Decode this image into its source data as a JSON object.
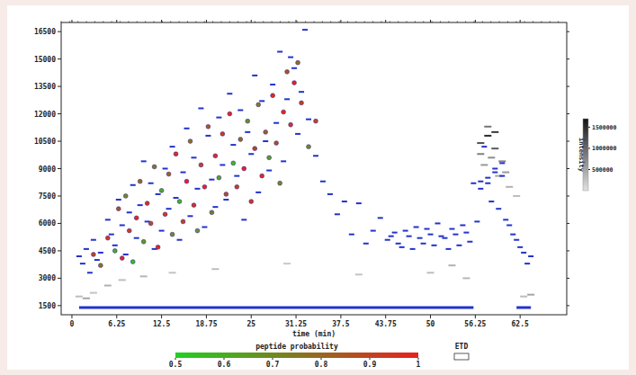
{
  "chart_data": {
    "type": "scatter",
    "x_label": "time (min)",
    "xlim": [
      -1.5,
      69
    ],
    "xticks": [
      0,
      6.25,
      12.5,
      18.75,
      25,
      31.25,
      37.5,
      43.75,
      50,
      56.25,
      62.5
    ],
    "ylim": [
      1000,
      17000
    ],
    "yticks": [
      1500,
      3000,
      4500,
      6000,
      7500,
      9000,
      10500,
      12000,
      13500,
      15000,
      16500
    ],
    "grid": false,
    "series": [
      {
        "color": "#2233cc",
        "marker": "dash",
        "x": [
          1,
          1.5,
          2,
          2.5,
          3,
          3.5,
          4,
          5,
          5.5,
          6,
          6.5,
          7,
          7.5,
          8,
          8.5,
          9,
          9.5,
          10,
          10.5,
          11,
          11.5,
          12,
          12.5,
          13,
          13.5,
          14,
          14.5,
          15,
          15.5,
          16,
          16.5,
          17,
          17.5,
          18,
          18.5,
          19,
          19.5,
          20,
          20.5,
          21,
          21.5,
          22,
          22.5,
          23,
          23.5,
          24,
          24.5,
          25,
          25.5,
          26,
          26.5,
          27,
          27.5,
          28,
          28.5,
          29,
          29.5,
          30,
          30.5,
          31,
          31.5,
          32,
          32.5,
          33,
          34,
          35,
          36,
          37,
          38,
          39,
          40,
          41,
          42,
          43,
          44,
          45,
          46,
          47,
          48,
          49,
          50,
          51,
          52,
          53,
          54,
          55,
          56,
          56.5,
          57,
          57.5,
          58,
          58.5,
          59,
          59.5,
          60,
          60.5,
          61,
          61.5,
          62,
          62.5,
          63,
          63.5,
          64,
          44.5,
          45.5,
          46.5,
          47.5,
          48.5,
          49.5,
          50.5,
          51.5,
          52.5,
          53.5,
          54.5,
          55.5,
          58,
          59,
          60,
          57
        ],
        "values": [
          4200,
          3800,
          4600,
          3300,
          5100,
          4000,
          4400,
          6200,
          5400,
          4800,
          7300,
          5900,
          4300,
          6600,
          8100,
          5200,
          7000,
          9400,
          6100,
          8200,
          4600,
          7600,
          5600,
          9000,
          6800,
          10200,
          7400,
          5100,
          8800,
          11200,
          6400,
          9600,
          7900,
          12300,
          5800,
          10800,
          8400,
          6900,
          11800,
          9200,
          7300,
          13100,
          10300,
          8600,
          12200,
          6200,
          11000,
          9800,
          14100,
          7700,
          12700,
          10500,
          8900,
          13600,
          11500,
          15400,
          9400,
          12800,
          15100,
          14500,
          10900,
          13200,
          16600,
          11700,
          9700,
          8300,
          7600,
          6500,
          7200,
          5400,
          7100,
          4900,
          5600,
          6300,
          5100,
          5500,
          4700,
          5300,
          5800,
          4900,
          5400,
          6000,
          5200,
          5700,
          4800,
          5500,
          8200,
          6100,
          8300,
          10200,
          8200,
          7200,
          9000,
          6800,
          9300,
          6200,
          5900,
          5400,
          5100,
          4700,
          4400,
          3800,
          4200,
          5300,
          4900,
          5600,
          4600,
          5200,
          5700,
          4800,
          5300,
          4600,
          5400,
          5900,
          5000,
          8500,
          8800,
          8600,
          7900
        ]
      },
      {
        "marker": "circle",
        "x": [
          3,
          4,
          5,
          6,
          6.5,
          7,
          7.5,
          8,
          8.5,
          9,
          9.5,
          10,
          10.5,
          11,
          11.5,
          12,
          12.5,
          13,
          13.5,
          14,
          14.5,
          15,
          15.5,
          16,
          16.5,
          17,
          17.5,
          18,
          18.5,
          19,
          19.5,
          20,
          20.5,
          21,
          21.5,
          22,
          22.5,
          23,
          23.5,
          24,
          24.5,
          25,
          25.5,
          26,
          26.5,
          27,
          27.5,
          28,
          28.5,
          29,
          29.5,
          30,
          30.5,
          31,
          31.5,
          32,
          33,
          34
        ],
        "values": [
          4300,
          3700,
          5200,
          4500,
          6800,
          4100,
          7500,
          5600,
          3900,
          6300,
          8300,
          5000,
          7100,
          6000,
          9100,
          4700,
          7800,
          6500,
          8700,
          5400,
          9800,
          7200,
          6100,
          8300,
          10500,
          7000,
          5600,
          9200,
          8000,
          11300,
          6600,
          9700,
          8500,
          10900,
          7600,
          12000,
          9300,
          8000,
          10600,
          9000,
          11600,
          7200,
          10100,
          12500,
          8600,
          11000,
          9600,
          13000,
          10400,
          8200,
          12100,
          14300,
          11400,
          13700,
          14800,
          12600,
          10200,
          11600
        ],
        "probability": [
          0.9,
          0.75,
          0.95,
          0.6,
          0.85,
          1,
          0.7,
          0.92,
          0.55,
          0.98,
          0.8,
          0.65,
          0.97,
          0.88,
          0.75,
          0.99,
          0.6,
          0.93,
          0.82,
          0.7,
          0.96,
          0.58,
          0.9,
          1,
          0.77,
          0.95,
          0.66,
          0.91,
          0.99,
          0.84,
          0.72,
          0.97,
          0.62,
          0.94,
          0.87,
          0.99,
          0.56,
          0.92,
          0.79,
          1,
          0.68,
          0.95,
          0.9,
          0.74,
          0.98,
          0.83,
          0.64,
          0.96,
          0.88,
          0.71,
          0.99,
          0.86,
          0.93,
          1,
          0.78,
          0.91,
          0.69,
          0.89
        ]
      },
      {
        "marker": "dash",
        "x": [
          1,
          2,
          3,
          5,
          7,
          10,
          14,
          20,
          30,
          40,
          50,
          53,
          55,
          57,
          57,
          57.5,
          58,
          58,
          58.5,
          59,
          59,
          59.5,
          60,
          60.5,
          61,
          62,
          63,
          64
        ],
        "values": [
          2000,
          1900,
          2200,
          2600,
          2900,
          3100,
          3300,
          3500,
          3800,
          3200,
          3300,
          3700,
          3000,
          9800,
          10400,
          9200,
          10800,
          11300,
          9600,
          10100,
          11000,
          8600,
          9400,
          8800,
          8000,
          7500,
          2000,
          2100
        ],
        "intensity": [
          300000,
          500000,
          250000,
          400000,
          300000,
          350000,
          250000,
          300000,
          200000,
          250000,
          300000,
          400000,
          350000,
          800000,
          1200000,
          600000,
          1500000,
          900000,
          700000,
          1100000,
          1400000,
          500000,
          800000,
          600000,
          400000,
          300000,
          300000,
          500000
        ]
      },
      {
        "type": "line",
        "color": "#2233cc",
        "x": [
          1,
          56,
          57,
          62,
          64
        ],
        "values": [
          1400,
          1400,
          null,
          1400,
          1400
        ]
      }
    ],
    "probability_label": "peptide probability",
    "probability_range": [
      0.5,
      1
    ],
    "probability_ticks": [
      0.5,
      0.6,
      0.7,
      0.8,
      0.9,
      1
    ],
    "intensity_label": "intensity",
    "intensity_range": [
      0,
      1700000
    ],
    "intensity_ticks": [
      500000,
      1000000,
      1500000
    ],
    "annotations": [
      {
        "text": "ETD"
      }
    ]
  }
}
